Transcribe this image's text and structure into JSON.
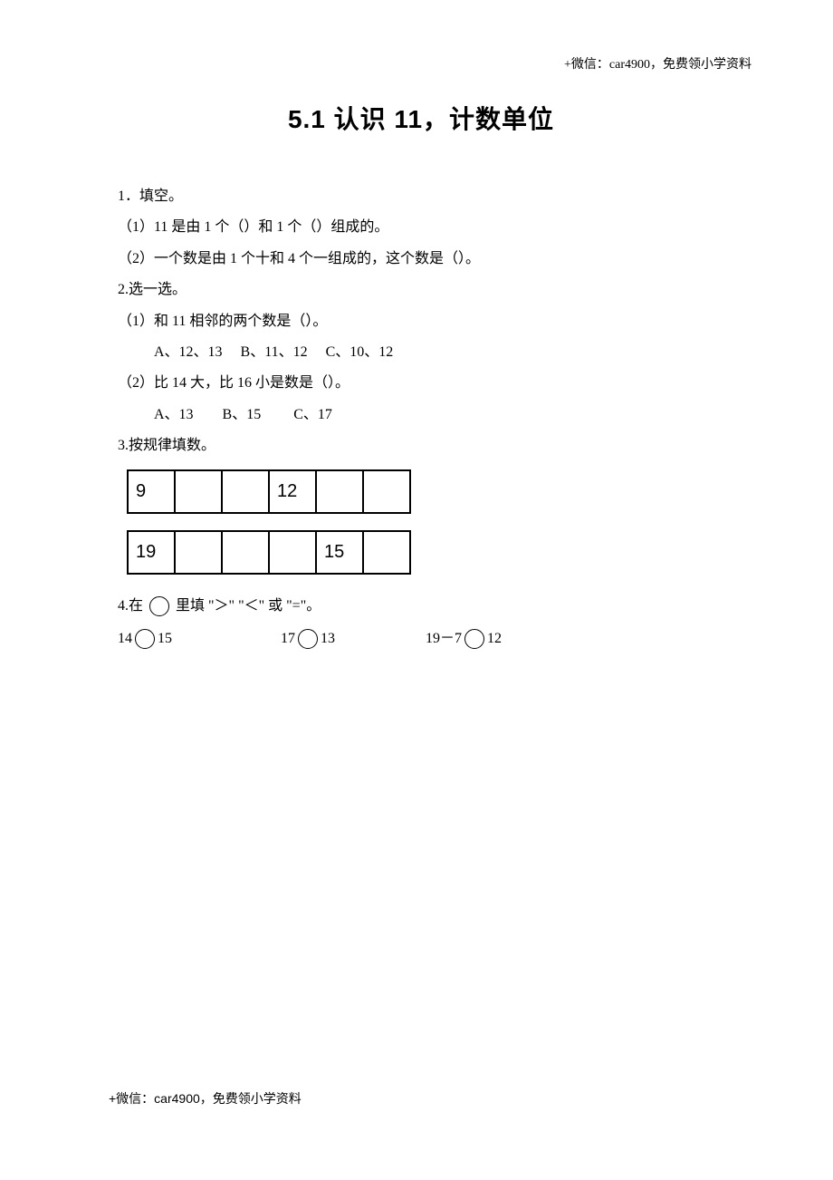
{
  "header_note": "+微信：car4900，免费领小学资料",
  "title": "5.1 认识 11，计数单位",
  "q1": {
    "heading": "1．填空。",
    "sub1": "（1）11 是由 1 个（）和 1 个（）组成的。",
    "sub2": "（2）一个数是由 1 个十和 4 个一组成的，这个数是（）。"
  },
  "q2": {
    "heading": "2.选一选。",
    "sub1": "（1）和 11 相邻的两个数是（）。",
    "sub1_choices": "A、12、13     B、11、12     C、10、12",
    "sub2": "（2）比 14 大，比 16 小是数是（）。",
    "sub2_choices": "A、13        B、15         C、17"
  },
  "q3": {
    "heading": "3.按规律填数。",
    "table1": [
      "9",
      "",
      "",
      "12",
      "",
      ""
    ],
    "table2": [
      "19",
      "",
      "",
      "",
      "15",
      ""
    ]
  },
  "q4": {
    "heading_prefix": "4.在",
    "heading_suffix": "里填 \"＞\" \"＜\" 或 \"=\"。",
    "g1_left": "14",
    "g1_right": "15",
    "g2_left": "17",
    "g2_right": "13",
    "g3_left": "19－7",
    "g3_right": "12"
  },
  "footer_note": "+微信：car4900，免费领小学资料"
}
